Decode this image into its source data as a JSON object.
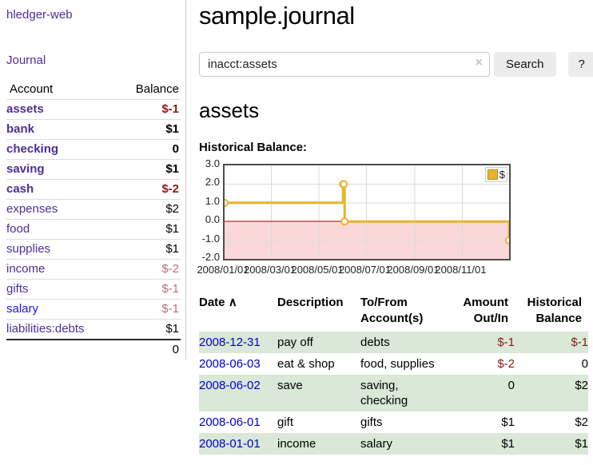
{
  "sidebar": {
    "app_title": "hledger-web",
    "nav": {
      "journal": "Journal"
    },
    "accounts": {
      "headers": {
        "account": "Account",
        "balance": "Balance"
      },
      "rows": [
        {
          "name": "assets",
          "balance": "$-1",
          "depth": 1,
          "bold": true,
          "name_style": "purple",
          "balance_style": "neg-strong"
        },
        {
          "name": "bank",
          "balance": "$1",
          "depth": 2,
          "bold": true,
          "name_style": "purple",
          "balance_style": "pos"
        },
        {
          "name": "checking",
          "balance": "0",
          "depth": 3,
          "bold": true,
          "name_style": "purple",
          "balance_style": "pos"
        },
        {
          "name": "saving",
          "balance": "$1",
          "depth": 3,
          "bold": true,
          "name_style": "purple",
          "balance_style": "pos"
        },
        {
          "name": "cash",
          "balance": "$-2",
          "depth": 2,
          "bold": true,
          "name_style": "purple",
          "balance_style": "neg-strong"
        },
        {
          "name": "expenses",
          "balance": "$2",
          "depth": 1,
          "bold": false,
          "name_style": "purple",
          "balance_style": "pos"
        },
        {
          "name": "food",
          "balance": "$1",
          "depth": 2,
          "bold": false,
          "name_style": "purple",
          "balance_style": "pos"
        },
        {
          "name": "supplies",
          "balance": "$1",
          "depth": 2,
          "bold": false,
          "name_style": "purple",
          "balance_style": "pos"
        },
        {
          "name": "income",
          "balance": "$-2",
          "depth": 1,
          "bold": false,
          "name_style": "purple",
          "balance_style": "neg-muted"
        },
        {
          "name": "gifts",
          "balance": "$-1",
          "depth": 2,
          "bold": false,
          "name_style": "purple",
          "balance_style": "neg-muted"
        },
        {
          "name": "salary",
          "balance": "$-1",
          "depth": 2,
          "bold": false,
          "name_style": "blue",
          "balance_style": "neg-muted"
        },
        {
          "name": "liabilities:debts",
          "balance": "$1",
          "depth": 1,
          "bold": false,
          "name_style": "purple",
          "balance_style": "pos"
        }
      ],
      "total": "0"
    }
  },
  "main": {
    "title": "sample.journal",
    "search": {
      "value": "inacct:assets",
      "clear_icon": "×",
      "search_button": "Search",
      "help_button": "?"
    },
    "account_heading": "assets",
    "chart_label": "Historical Balance:"
  },
  "chart_data": {
    "type": "line",
    "title": "Historical Balance",
    "step": true,
    "legend_label": "$",
    "legend_position": "top-right",
    "grid": true,
    "x_range": [
      "2008-01-01",
      "2008-12-31"
    ],
    "ylim": [
      -2,
      3
    ],
    "y_ticks": [
      "3.0",
      "2.0",
      "1.0",
      "0.0",
      "-1.0",
      "-2.0"
    ],
    "x_ticks": [
      {
        "label": "2008/01/01",
        "date": "2008-01-01"
      },
      {
        "label": "2008/03/01",
        "date": "2008-03-01"
      },
      {
        "label": "2008/05/01",
        "date": "2008-05-01"
      },
      {
        "label": "2008/07/01",
        "date": "2008-07-01"
      },
      {
        "label": "2008/09/01",
        "date": "2008-09-01"
      },
      {
        "label": "2008/11/01",
        "date": "2008-11-01"
      }
    ],
    "series": [
      {
        "name": "$",
        "color": "#e8b42e",
        "points": [
          {
            "date": "2008-01-01",
            "value": 1
          },
          {
            "date": "2008-06-01",
            "value": 2
          },
          {
            "date": "2008-06-02",
            "value": 2
          },
          {
            "date": "2008-06-03",
            "value": 0
          },
          {
            "date": "2008-12-31",
            "value": -1
          }
        ]
      }
    ],
    "zero_line_color": "#990000",
    "negative_region_color": "#fbd8d8"
  },
  "register": {
    "headers": {
      "date": "Date",
      "sort_indicator": "∧",
      "description": "Description",
      "accounts": "To/From Account(s)",
      "amount": "Amount Out/In",
      "balance": "Historical Balance"
    },
    "rows": [
      {
        "date": "2008-12-31",
        "description": "pay off",
        "accounts": "debts",
        "amount": "$-1",
        "amount_style": "neg-strong",
        "balance": "$-1",
        "balance_style": "neg-strong",
        "shaded": true
      },
      {
        "date": "2008-06-03",
        "description": "eat & shop",
        "accounts": "food, supplies",
        "amount": "$-2",
        "amount_style": "neg-strong",
        "balance": "0",
        "balance_style": "pos",
        "shaded": false
      },
      {
        "date": "2008-06-02",
        "description": "save",
        "accounts": "saving, checking",
        "amount": "0",
        "amount_style": "pos",
        "balance": "$2",
        "balance_style": "pos",
        "shaded": true
      },
      {
        "date": "2008-06-01",
        "description": "gift",
        "accounts": "gifts",
        "amount": "$1",
        "amount_style": "pos",
        "balance": "$2",
        "balance_style": "pos",
        "shaded": false
      },
      {
        "date": "2008-01-01",
        "description": "income",
        "accounts": "salary",
        "amount": "$1",
        "amount_style": "pos",
        "balance": "$1",
        "balance_style": "pos",
        "shaded": true
      }
    ]
  }
}
